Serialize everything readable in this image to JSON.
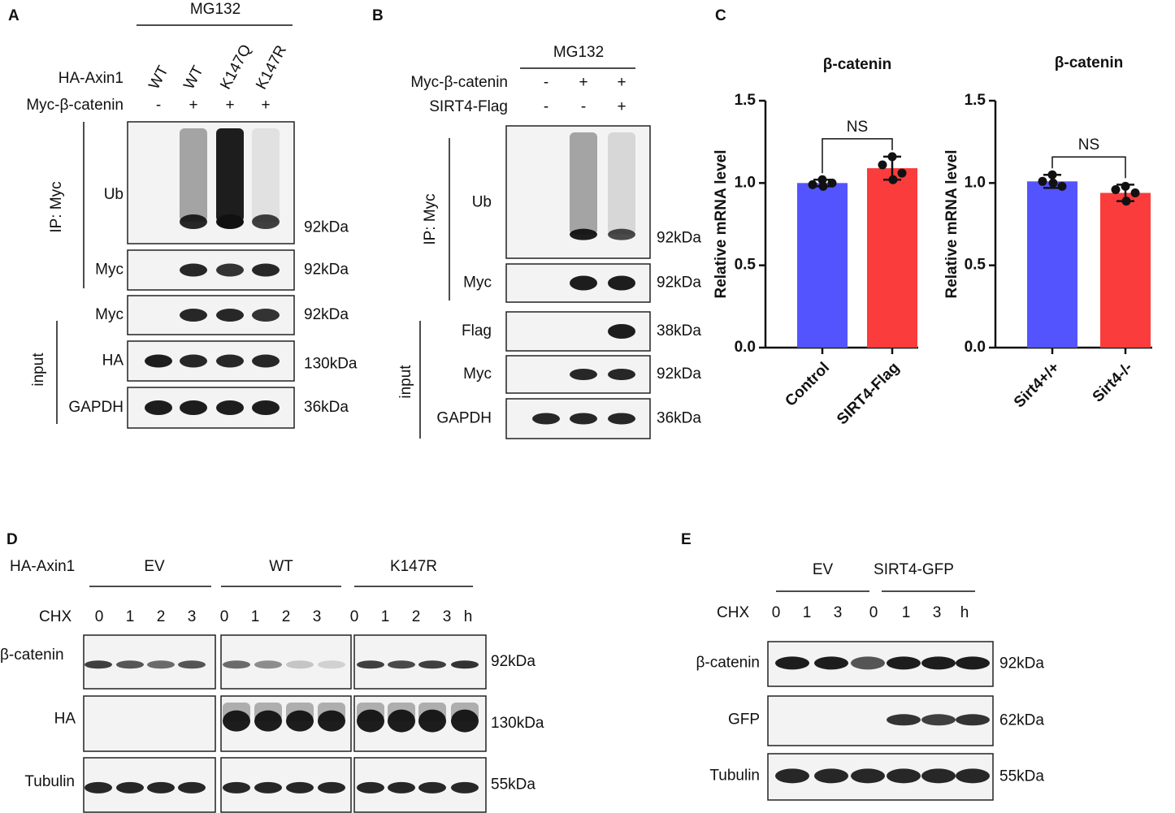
{
  "panels": {
    "A": {
      "letter": "A",
      "treatment": "MG132",
      "conditions": [
        {
          "name": "HA-Axin1",
          "values": [
            "WT",
            "WT",
            "K147Q",
            "K147R"
          ]
        },
        {
          "name": "Myc-β-catenin",
          "values": [
            "-",
            "+",
            "+",
            "+"
          ]
        }
      ],
      "groups": [
        {
          "label": "IP: Myc",
          "blots": [
            {
              "label": "Ub",
              "size": "92kDa"
            },
            {
              "label": "Myc",
              "size": "92kDa"
            }
          ]
        },
        {
          "label": "input",
          "blots": [
            {
              "label": "Myc",
              "size": "92kDa"
            },
            {
              "label": "HA",
              "size": "130kDa"
            },
            {
              "label": "GAPDH",
              "size": "36kDa"
            }
          ]
        }
      ]
    },
    "B": {
      "letter": "B",
      "treatment": "MG132",
      "conditions": [
        {
          "name": "Myc-β-catenin",
          "values": [
            "-",
            "+",
            "+"
          ]
        },
        {
          "name": "SIRT4-Flag",
          "values": [
            "-",
            "-",
            "+"
          ]
        }
      ],
      "groups": [
        {
          "label": "IP: Myc",
          "blots": [
            {
              "label": "Ub",
              "size": "92kDa"
            },
            {
              "label": "Myc",
              "size": "92kDa"
            }
          ]
        },
        {
          "label": "input",
          "blots": [
            {
              "label": "Flag",
              "size": "38kDa"
            },
            {
              "label": "Myc",
              "size": "92kDa"
            },
            {
              "label": "GAPDH",
              "size": "36kDa"
            }
          ]
        }
      ]
    },
    "C": {
      "letter": "C"
    },
    "D": {
      "letter": "D",
      "condition": "HA-Axin1",
      "groups": [
        "EV",
        "WT",
        "K147R"
      ],
      "time_label": "CHX",
      "times": [
        [
          "0",
          "1",
          "2",
          "3"
        ],
        [
          "0",
          "1",
          "2",
          "3"
        ],
        [
          "0",
          "1",
          "2",
          "3"
        ]
      ],
      "unit": "h",
      "blots": [
        {
          "label": "β-catenin",
          "size": "92kDa"
        },
        {
          "label": "HA",
          "size": "130kDa"
        },
        {
          "label": "Tubulin",
          "size": "55kDa"
        }
      ]
    },
    "E": {
      "letter": "E",
      "groups": [
        "EV",
        "SIRT4-GFP"
      ],
      "time_label": "CHX",
      "times": [
        "0",
        "1",
        "3",
        "0",
        "1",
        "3"
      ],
      "unit": "h",
      "blots": [
        {
          "label": "β-catenin",
          "size": "92kDa"
        },
        {
          "label": "GFP",
          "size": "62kDa"
        },
        {
          "label": "Tubulin",
          "size": "55kDa"
        }
      ]
    }
  },
  "chart_data": [
    {
      "type": "bar",
      "title": "β-catenin",
      "y_label": "Relative mRNA level",
      "categories": [
        "Control",
        "SIRT4-Flag"
      ],
      "values": [
        1.0,
        1.09
      ],
      "errors": [
        0.02,
        0.07
      ],
      "points": [
        [
          1.02,
          0.99,
          1.0,
          0.98
        ],
        [
          1.16,
          1.11,
          1.06,
          1.02
        ]
      ],
      "colors": [
        "#5454ff",
        "#fa3c3c"
      ],
      "annotation": "NS",
      "ylim": [
        0,
        1.5
      ],
      "yticks": [
        {
          "value": 0,
          "label": "0.0"
        },
        {
          "value": 0.5,
          "label": "0.5"
        },
        {
          "value": 1,
          "label": "1.0"
        },
        {
          "value": 1.5,
          "label": "1.5"
        }
      ]
    },
    {
      "type": "bar",
      "title": "β-catenin",
      "y_label": "Relative mRNA level",
      "categories": [
        "Sirt4+/+",
        "Sirt4-/-"
      ],
      "values": [
        1.01,
        0.94
      ],
      "errors": [
        0.04,
        0.05
      ],
      "points": [
        [
          1.05,
          1.01,
          0.98,
          1.0
        ],
        [
          0.98,
          0.96,
          0.94,
          0.89
        ]
      ],
      "colors": [
        "#5454ff",
        "#fa3c3c"
      ],
      "annotation": "NS",
      "ylim": [
        0,
        1.5
      ],
      "yticks": [
        {
          "value": 0,
          "label": "0.0"
        },
        {
          "value": 0.5,
          "label": "0.5"
        },
        {
          "value": 1,
          "label": "1.0"
        },
        {
          "value": 1.5,
          "label": "1.5"
        }
      ]
    }
  ]
}
